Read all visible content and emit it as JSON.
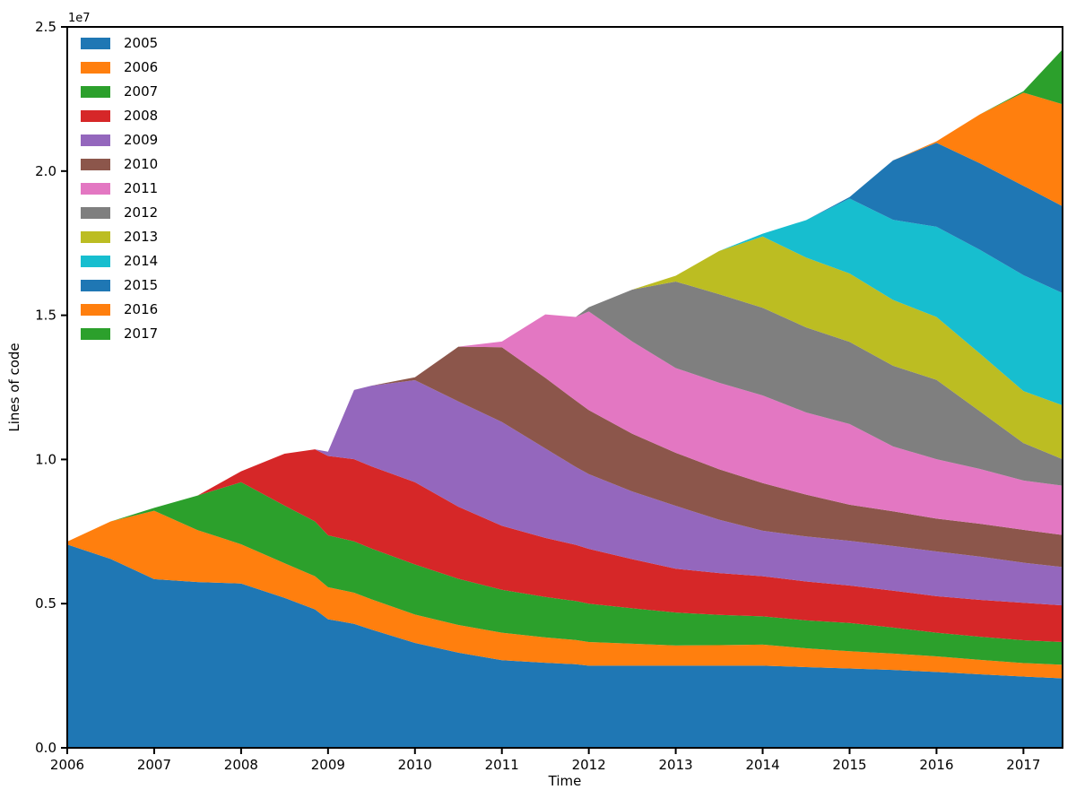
{
  "figure": {
    "offset_label": "1e7",
    "xlabel": "Time",
    "ylabel": "Lines of code"
  },
  "axes": {
    "x_tick_values": [
      2006,
      2007,
      2008,
      2009,
      2010,
      2011,
      2012,
      2013,
      2014,
      2015,
      2016,
      2017
    ],
    "x_tick_labels": [
      "2006",
      "2007",
      "2008",
      "2009",
      "2010",
      "2011",
      "2012",
      "2013",
      "2014",
      "2015",
      "2016",
      "2017"
    ],
    "y_tick_values_millions": [
      0,
      5,
      10,
      15,
      20,
      25
    ],
    "y_tick_labels": [
      "0.0",
      "0.5",
      "1.0",
      "1.5",
      "2.0",
      "2.5"
    ]
  },
  "legend": {
    "position": "upper left",
    "entries": [
      {
        "label": "2005",
        "color": "#1f77b4"
      },
      {
        "label": "2006",
        "color": "#ff7f0e"
      },
      {
        "label": "2007",
        "color": "#2ca02c"
      },
      {
        "label": "2008",
        "color": "#d62728"
      },
      {
        "label": "2009",
        "color": "#9467bd"
      },
      {
        "label": "2010",
        "color": "#8c564b"
      },
      {
        "label": "2011",
        "color": "#e377c2"
      },
      {
        "label": "2012",
        "color": "#7f7f7f"
      },
      {
        "label": "2013",
        "color": "#bcbd22"
      },
      {
        "label": "2014",
        "color": "#17becf"
      },
      {
        "label": "2015",
        "color": "#1f77b4"
      },
      {
        "label": "2016",
        "color": "#ff7f0e"
      },
      {
        "label": "2017",
        "color": "#2ca02c"
      }
    ]
  },
  "chart_data": {
    "type": "area",
    "stacked": true,
    "title": "",
    "xlabel": "Time",
    "ylabel": "Lines of code",
    "grid": false,
    "legend_position": "upper left",
    "xlim": [
      2006,
      2017.45
    ],
    "ylim_millions": [
      0,
      25
    ],
    "unit_multiplier": 1000000,
    "units": "lines of code (values in millions)",
    "x": [
      2006,
      2006.5,
      2007,
      2007.5,
      2008,
      2008.5,
      2008.85,
      2009,
      2009.3,
      2009.5,
      2010,
      2010.5,
      2011,
      2011.5,
      2011.85,
      2012,
      2012.5,
      2013,
      2013.5,
      2014,
      2014.5,
      2015,
      2015.5,
      2016,
      2016.5,
      2017,
      2017.45
    ],
    "series": [
      {
        "name": "2005",
        "color": "#1f77b4",
        "values": [
          7.05,
          6.55,
          5.85,
          5.75,
          5.7,
          5.2,
          4.8,
          4.46,
          4.3,
          4.1,
          3.64,
          3.3,
          3.04,
          2.95,
          2.9,
          2.85,
          2.85,
          2.85,
          2.85,
          2.85,
          2.8,
          2.75,
          2.7,
          2.63,
          2.55,
          2.47,
          2.41
        ]
      },
      {
        "name": "2006",
        "color": "#ff7f0e",
        "values": [
          0.1,
          1.3,
          2.37,
          1.8,
          1.36,
          1.2,
          1.15,
          1.11,
          1.08,
          1.05,
          0.98,
          0.96,
          0.95,
          0.88,
          0.84,
          0.82,
          0.76,
          0.7,
          0.71,
          0.73,
          0.65,
          0.6,
          0.57,
          0.54,
          0.5,
          0.47,
          0.47
        ]
      },
      {
        "name": "2007",
        "color": "#2ca02c",
        "values": [
          0,
          0,
          0.1,
          1.2,
          2.15,
          2.0,
          1.9,
          1.8,
          1.78,
          1.76,
          1.74,
          1.6,
          1.49,
          1.4,
          1.35,
          1.33,
          1.23,
          1.14,
          1.05,
          0.98,
          0.97,
          0.98,
          0.9,
          0.82,
          0.8,
          0.79,
          0.79
        ]
      },
      {
        "name": "2008",
        "color": "#d62728",
        "values": [
          0,
          0,
          0,
          0,
          0.38,
          1.8,
          2.5,
          2.75,
          2.85,
          2.85,
          2.85,
          2.5,
          2.22,
          2.05,
          1.95,
          1.9,
          1.7,
          1.52,
          1.45,
          1.39,
          1.35,
          1.3,
          1.28,
          1.27,
          1.28,
          1.3,
          1.27
        ]
      },
      {
        "name": "2009",
        "color": "#9467bd",
        "values": [
          0,
          0,
          0,
          0,
          0,
          0,
          0,
          0.15,
          2.4,
          2.8,
          3.54,
          3.65,
          3.6,
          3.1,
          2.7,
          2.59,
          2.35,
          2.18,
          1.85,
          1.58,
          1.56,
          1.55,
          1.55,
          1.55,
          1.5,
          1.39,
          1.33
        ]
      },
      {
        "name": "2010",
        "color": "#8c564b",
        "values": [
          0,
          0,
          0,
          0,
          0,
          0,
          0,
          0,
          0,
          0,
          0.1,
          1.9,
          2.59,
          2.45,
          2.3,
          2.22,
          2.0,
          1.84,
          1.75,
          1.65,
          1.45,
          1.25,
          1.2,
          1.14,
          1.14,
          1.14,
          1.11
        ]
      },
      {
        "name": "2011",
        "color": "#e377c2",
        "values": [
          0,
          0,
          0,
          0,
          0,
          0,
          0,
          0,
          0,
          0,
          0,
          0,
          0.2,
          2.2,
          2.9,
          3.42,
          3.2,
          2.94,
          3.0,
          3.04,
          2.85,
          2.8,
          2.25,
          2.06,
          1.9,
          1.71,
          1.71
        ]
      },
      {
        "name": "2012",
        "color": "#7f7f7f",
        "values": [
          0,
          0,
          0,
          0,
          0,
          0,
          0,
          0,
          0,
          0,
          0,
          0,
          0,
          0,
          0,
          0.15,
          1.8,
          3.0,
          3.07,
          3.04,
          2.95,
          2.85,
          2.8,
          2.75,
          2.0,
          1.3,
          0.92
        ]
      },
      {
        "name": "2013",
        "color": "#bcbd22",
        "values": [
          0,
          0,
          0,
          0,
          0,
          0,
          0,
          0,
          0,
          0,
          0,
          0,
          0,
          0,
          0,
          0,
          0,
          0.2,
          1.5,
          2.47,
          2.42,
          2.37,
          2.28,
          2.18,
          2.0,
          1.8,
          1.87
        ]
      },
      {
        "name": "2014",
        "color": "#17becf",
        "values": [
          0,
          0,
          0,
          0,
          0,
          0,
          0,
          0,
          0,
          0,
          0,
          0,
          0,
          0,
          0,
          0,
          0,
          0,
          0,
          0.1,
          1.3,
          2.6,
          2.78,
          3.13,
          3.6,
          4.02,
          3.89
        ]
      },
      {
        "name": "2015",
        "color": "#1f77b4",
        "values": [
          0,
          0,
          0,
          0,
          0,
          0,
          0,
          0,
          0,
          0,
          0,
          0,
          0,
          0,
          0,
          0,
          0,
          0,
          0,
          0,
          0,
          0.05,
          2.06,
          2.91,
          3.0,
          3.1,
          3.01
        ]
      },
      {
        "name": "2016",
        "color": "#ff7f0e",
        "values": [
          0,
          0,
          0,
          0,
          0,
          0,
          0,
          0,
          0,
          0,
          0,
          0,
          0,
          0,
          0,
          0,
          0,
          0,
          0,
          0,
          0,
          0,
          0,
          0.05,
          1.7,
          3.23,
          3.54
        ]
      },
      {
        "name": "2017",
        "color": "#2ca02c",
        "values": [
          0,
          0,
          0,
          0,
          0,
          0,
          0,
          0,
          0,
          0,
          0,
          0,
          0,
          0,
          0,
          0,
          0,
          0,
          0,
          0,
          0,
          0,
          0,
          0,
          0,
          0.05,
          1.9
        ]
      }
    ]
  }
}
